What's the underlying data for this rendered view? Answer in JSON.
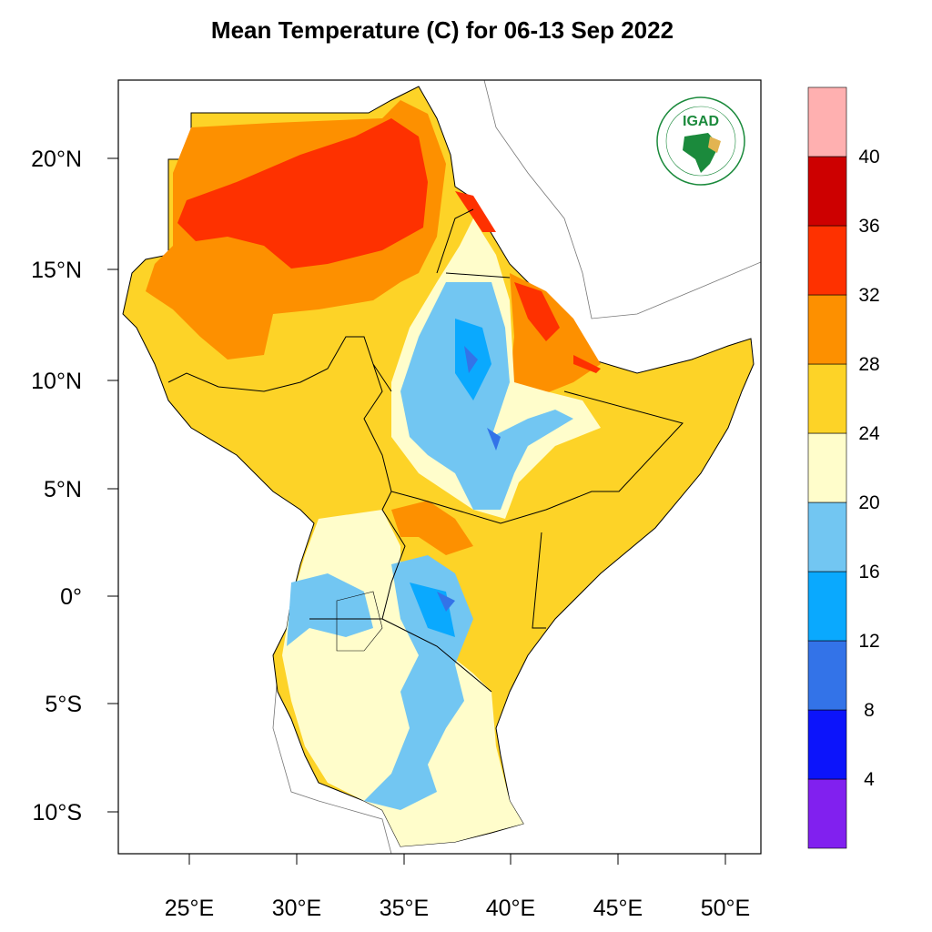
{
  "title": "Mean Temperature (C) for 06-13 Sep 2022",
  "map": {
    "lon_ticks": [
      "25°E",
      "30°E",
      "35°E",
      "40°E",
      "45°E",
      "50°E"
    ],
    "lat_ticks": [
      "20°N",
      "15°N",
      "10°N",
      "5°N",
      "0°",
      "5°S",
      "10°S"
    ],
    "lon_range": [
      21.7,
      51.7
    ],
    "lat_range": [
      -11.8,
      23.6
    ]
  },
  "colorbar": {
    "levels": [
      "4",
      "8",
      "12",
      "16",
      "20",
      "24",
      "28",
      "32",
      "36",
      "40"
    ],
    "colors": [
      "#8120ef",
      "#0c14fb",
      "#3373e8",
      "#0aa9fe",
      "#72c6f2",
      "#fffdcb",
      "#fdd327",
      "#fd9000",
      "#fe3100",
      "#cd0000",
      "#ffb0b0"
    ]
  },
  "logo": {
    "text": "IGAD",
    "ring_top": "INTERGOVERNMENTAL AUTHORITY ON DEVELOPMENT",
    "ring_bottom": "AUTORITE INTERGOUVERNEMENTALE POUR LE DEVELOPPEMENT",
    "green": "#1b8a3c",
    "gold": "#e2b451"
  }
}
